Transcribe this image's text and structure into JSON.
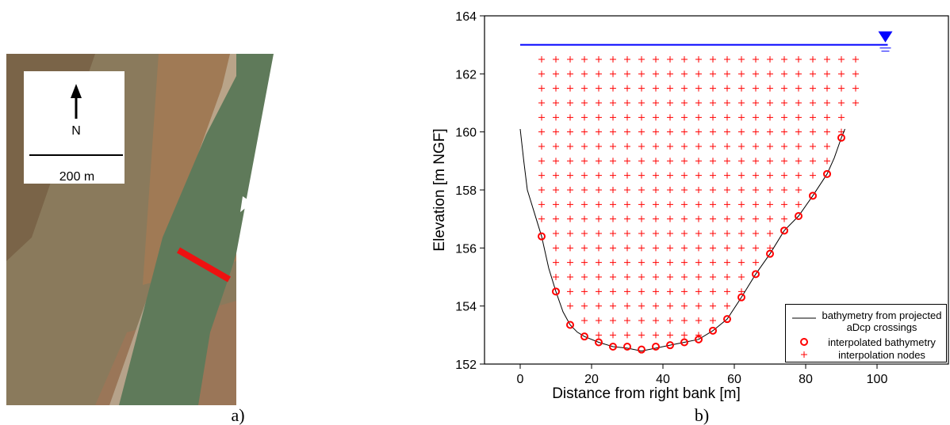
{
  "panel_a": {
    "north": "N",
    "scale": "200 m",
    "caption": "a)"
  },
  "chart_data": {
    "type": "line",
    "caption": "b)",
    "xlabel": "Distance from right bank [m]",
    "ylabel": "Elevation [m NGF]",
    "xlim": [
      -10,
      120
    ],
    "ylim": [
      152,
      164
    ],
    "xticks": [
      0,
      20,
      40,
      60,
      80,
      100
    ],
    "yticks": [
      152,
      154,
      156,
      158,
      160,
      162,
      164
    ],
    "legend": "lower right",
    "water_level": {
      "color": "#0000ff",
      "x": [
        0,
        103
      ],
      "y": 163
    },
    "series": [
      {
        "name": "bathymetry from projected aDcp crossings",
        "kind": "line",
        "color": "#000000",
        "x": [
          0,
          1,
          2,
          4,
          6,
          8,
          10,
          12,
          14,
          16,
          18,
          22,
          26,
          30,
          34,
          38,
          42,
          46,
          50,
          54,
          58,
          62,
          66,
          70,
          74,
          78,
          82,
          86,
          88,
          90,
          91
        ],
        "values": [
          160.1,
          159,
          158,
          157.2,
          156.4,
          155.3,
          154.5,
          153.8,
          153.35,
          153.1,
          152.95,
          152.75,
          152.6,
          152.55,
          152.45,
          152.55,
          152.65,
          152.75,
          152.85,
          153.15,
          153.55,
          154.3,
          155.1,
          155.8,
          156.6,
          157.1,
          157.8,
          158.55,
          159.1,
          159.8,
          160.1
        ]
      },
      {
        "name": "interpolated bathymetry",
        "kind": "circle",
        "color": "#ff0000",
        "x": [
          6,
          10,
          14,
          18,
          22,
          26,
          30,
          34,
          38,
          42,
          46,
          50,
          54,
          58,
          62,
          66,
          70,
          74,
          78,
          82,
          86,
          90
        ],
        "values": [
          156.4,
          154.5,
          153.35,
          152.95,
          152.75,
          152.6,
          152.6,
          152.5,
          152.6,
          152.65,
          152.75,
          152.85,
          153.15,
          153.55,
          154.3,
          155.1,
          155.8,
          156.6,
          157.1,
          157.8,
          158.55,
          159.8
        ]
      }
    ],
    "nodes": {
      "name": "interpolation nodes",
      "color": "#ff0000",
      "columns": [
        {
          "x": 6,
          "y": [
            162.5,
            162,
            161.5,
            161,
            160.5,
            160,
            159.5,
            159,
            158.5,
            158,
            157.5,
            157
          ]
        },
        {
          "x": 10,
          "y": [
            162.5,
            162,
            161.5,
            161,
            160.5,
            160,
            159.5,
            159,
            158.5,
            158,
            157.5,
            157,
            156.5,
            156,
            155.5,
            155
          ]
        },
        {
          "x": 14,
          "y": [
            162.5,
            162,
            161.5,
            161,
            160.5,
            160,
            159.5,
            159,
            158.5,
            158,
            157.5,
            157,
            156.5,
            156,
            155.5,
            155,
            154.5,
            154
          ]
        },
        {
          "x": 18,
          "y": [
            162.5,
            162,
            161.5,
            161,
            160.5,
            160,
            159.5,
            159,
            158.5,
            158,
            157.5,
            157,
            156.5,
            156,
            155.5,
            155,
            154.5,
            154,
            153.5
          ]
        },
        {
          "x": 22,
          "y": [
            162.5,
            162,
            161.5,
            161,
            160.5,
            160,
            159.5,
            159,
            158.5,
            158,
            157.5,
            157,
            156.5,
            156,
            155.5,
            155,
            154.5,
            154,
            153.5,
            153
          ]
        },
        {
          "x": 26,
          "y": [
            162.5,
            162,
            161.5,
            161,
            160.5,
            160,
            159.5,
            159,
            158.5,
            158,
            157.5,
            157,
            156.5,
            156,
            155.5,
            155,
            154.5,
            154,
            153.5,
            153
          ]
        },
        {
          "x": 30,
          "y": [
            162.5,
            162,
            161.5,
            161,
            160.5,
            160,
            159.5,
            159,
            158.5,
            158,
            157.5,
            157,
            156.5,
            156,
            155.5,
            155,
            154.5,
            154,
            153.5,
            153
          ]
        },
        {
          "x": 34,
          "y": [
            162.5,
            162,
            161.5,
            161,
            160.5,
            160,
            159.5,
            159,
            158.5,
            158,
            157.5,
            157,
            156.5,
            156,
            155.5,
            155,
            154.5,
            154,
            153.5,
            153
          ]
        },
        {
          "x": 38,
          "y": [
            162.5,
            162,
            161.5,
            161,
            160.5,
            160,
            159.5,
            159,
            158.5,
            158,
            157.5,
            157,
            156.5,
            156,
            155.5,
            155,
            154.5,
            154,
            153.5,
            153
          ]
        },
        {
          "x": 42,
          "y": [
            162.5,
            162,
            161.5,
            161,
            160.5,
            160,
            159.5,
            159,
            158.5,
            158,
            157.5,
            157,
            156.5,
            156,
            155.5,
            155,
            154.5,
            154,
            153.5,
            153
          ]
        },
        {
          "x": 46,
          "y": [
            162.5,
            162,
            161.5,
            161,
            160.5,
            160,
            159.5,
            159,
            158.5,
            158,
            157.5,
            157,
            156.5,
            156,
            155.5,
            155,
            154.5,
            154,
            153.5,
            153
          ]
        },
        {
          "x": 50,
          "y": [
            162.5,
            162,
            161.5,
            161,
            160.5,
            160,
            159.5,
            159,
            158.5,
            158,
            157.5,
            157,
            156.5,
            156,
            155.5,
            155,
            154.5,
            154,
            153.5,
            153
          ]
        },
        {
          "x": 54,
          "y": [
            162.5,
            162,
            161.5,
            161,
            160.5,
            160,
            159.5,
            159,
            158.5,
            158,
            157.5,
            157,
            156.5,
            156,
            155.5,
            155,
            154.5,
            154,
            153.5
          ]
        },
        {
          "x": 58,
          "y": [
            162.5,
            162,
            161.5,
            161,
            160.5,
            160,
            159.5,
            159,
            158.5,
            158,
            157.5,
            157,
            156.5,
            156,
            155.5,
            155,
            154.5,
            154
          ]
        },
        {
          "x": 62,
          "y": [
            162.5,
            162,
            161.5,
            161,
            160.5,
            160,
            159.5,
            159,
            158.5,
            158,
            157.5,
            157,
            156.5,
            156,
            155.5,
            155,
            154.5
          ]
        },
        {
          "x": 66,
          "y": [
            162.5,
            162,
            161.5,
            161,
            160.5,
            160,
            159.5,
            159,
            158.5,
            158,
            157.5,
            157,
            156.5,
            156,
            155.5
          ]
        },
        {
          "x": 70,
          "y": [
            162.5,
            162,
            161.5,
            161,
            160.5,
            160,
            159.5,
            159,
            158.5,
            158,
            157.5,
            157,
            156.5,
            156
          ]
        },
        {
          "x": 74,
          "y": [
            162.5,
            162,
            161.5,
            161,
            160.5,
            160,
            159.5,
            159,
            158.5,
            158,
            157.5,
            157
          ]
        },
        {
          "x": 78,
          "y": [
            162.5,
            162,
            161.5,
            161,
            160.5,
            160,
            159.5,
            159,
            158.5,
            158,
            157.5
          ]
        },
        {
          "x": 82,
          "y": [
            162.5,
            162,
            161.5,
            161,
            160.5,
            160,
            159.5,
            159,
            158.5
          ]
        },
        {
          "x": 86,
          "y": [
            162.5,
            162,
            161.5,
            161,
            160.5,
            160,
            159.5,
            159
          ]
        },
        {
          "x": 90,
          "y": [
            162.5,
            162,
            161.5,
            161,
            160.5,
            160
          ]
        },
        {
          "x": 94,
          "y": [
            162.5,
            162,
            161.5,
            161
          ]
        }
      ]
    }
  }
}
